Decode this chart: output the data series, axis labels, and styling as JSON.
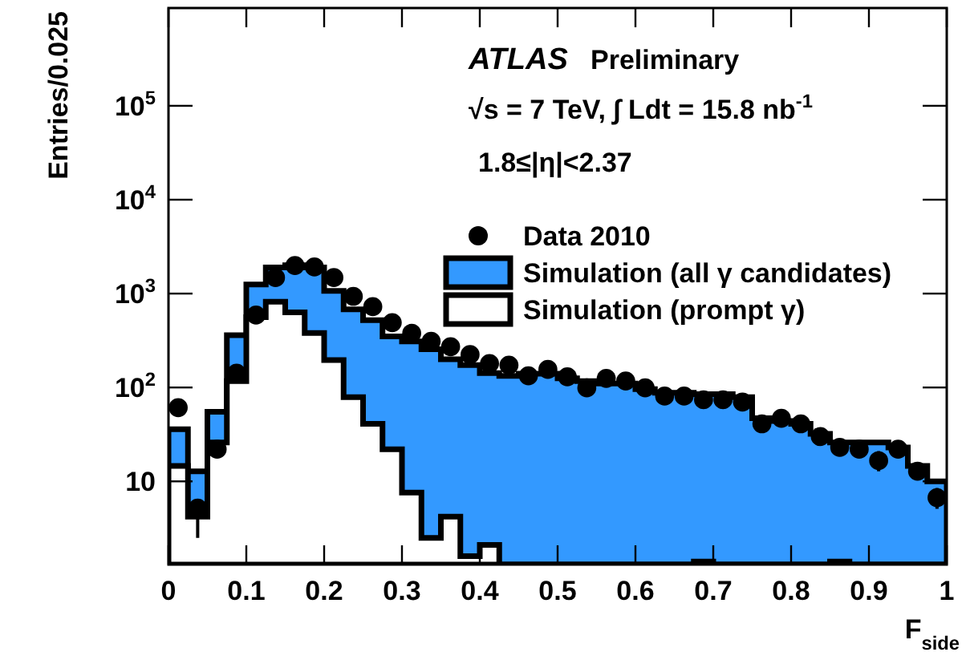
{
  "chart_data": {
    "type": "histogram",
    "xlabel": "F$_{side}$",
    "ylabel": "Entries/0.025",
    "annotations": [
      "ATLAS",
      "Preliminary",
      "√s = 7 TeV, ∫ Ldt = 15.8 nb$^{-1}$",
      "1.8≤|η|<2.37"
    ],
    "bins": [
      0,
      0.025,
      0.05,
      0.075,
      0.1,
      0.125,
      0.15,
      0.175,
      0.2,
      0.225,
      0.25,
      0.275,
      0.3,
      0.325,
      0.35,
      0.375,
      0.4,
      0.425,
      0.45,
      0.475,
      0.5,
      0.525,
      0.55,
      0.575,
      0.6,
      0.625,
      0.65,
      0.675,
      0.7,
      0.725,
      0.75,
      0.775,
      0.8,
      0.825,
      0.85,
      0.875,
      0.9,
      0.925,
      0.95,
      0.975,
      1
    ],
    "series": [
      {
        "name": "Simulation (all γ candidates)",
        "color": "#3399ff",
        "values": [
          36,
          12.8,
          55,
          360,
          1250,
          1900,
          2000,
          1900,
          1070,
          680,
          520,
          350,
          310,
          255,
          200,
          173,
          142,
          133,
          140,
          140,
          125,
          117,
          110,
          110,
          96,
          88,
          88,
          85,
          85,
          79,
          47,
          44,
          41,
          32,
          26,
          26,
          26,
          23,
          14.6,
          10
        ]
      },
      {
        "name": "Simulation (prompt γ)",
        "color": "#ffffff",
        "values": [
          14.6,
          4.2,
          26,
          117,
          560,
          820,
          630,
          380,
          196,
          79,
          41,
          22,
          7.6,
          2.5,
          4.2,
          1.6,
          2.1,
          null,
          null,
          null,
          null,
          null,
          null,
          null,
          null,
          null,
          null,
          1.4,
          null,
          null,
          null,
          null,
          null,
          null,
          1.4,
          null,
          null,
          null,
          null,
          null
        ]
      },
      {
        "name": "Data 2010",
        "type": "scatter",
        "marker": "circle",
        "color": "#000000",
        "x": [
          0.0125,
          0.0375,
          0.0625,
          0.0875,
          0.1125,
          0.1375,
          0.1625,
          0.1875,
          0.2125,
          0.2375,
          0.2625,
          0.2875,
          0.3125,
          0.3375,
          0.3625,
          0.3875,
          0.4125,
          0.4375,
          0.4625,
          0.4875,
          0.5125,
          0.5375,
          0.5625,
          0.5875,
          0.6125,
          0.6375,
          0.6625,
          0.6875,
          0.7125,
          0.7375,
          0.7625,
          0.7875,
          0.8125,
          0.8375,
          0.8625,
          0.8875,
          0.9125,
          0.9375,
          0.9625,
          0.9875
        ],
        "values": [
          61,
          5.2,
          22,
          142,
          590,
          1480,
          1990,
          1920,
          1480,
          935,
          725,
          490,
          377,
          310,
          272,
          224,
          180,
          173,
          133,
          156,
          130,
          99,
          125,
          117,
          99,
          81,
          81,
          74,
          74,
          70,
          41,
          47,
          41,
          30,
          23,
          22,
          16.6,
          22,
          12.8,
          6.7
        ],
        "errors": [
          null,
          [
            2.5,
            6.3
          ],
          null,
          null,
          null,
          null,
          null,
          null,
          null,
          null,
          null,
          null,
          null,
          null,
          null,
          null,
          null,
          null,
          null,
          null,
          null,
          null,
          null,
          null,
          null,
          null,
          null,
          null,
          null,
          null,
          null,
          null,
          null,
          null,
          null,
          null,
          [
            12.8,
            21
          ],
          null,
          null,
          [
            5.1,
            8.5
          ]
        ]
      }
    ],
    "xlim": [
      0,
      1
    ],
    "xticks": [
      0,
      0.1,
      0.2,
      0.3,
      0.4,
      0.5,
      0.6,
      0.7,
      0.8,
      0.9,
      1
    ],
    "ylim": [
      1.3,
      1100000
    ],
    "log": true,
    "yticks": [
      {
        "value": 10,
        "label": "10"
      },
      {
        "value": 100,
        "label": "10$^{2}$"
      },
      {
        "value": 1000,
        "label": "10$^{3}$"
      },
      {
        "value": 10000,
        "label": "10$^{4}$"
      },
      {
        "value": 100000,
        "label": "10$^{5}$"
      }
    ],
    "grid": false,
    "legend": "top right"
  }
}
